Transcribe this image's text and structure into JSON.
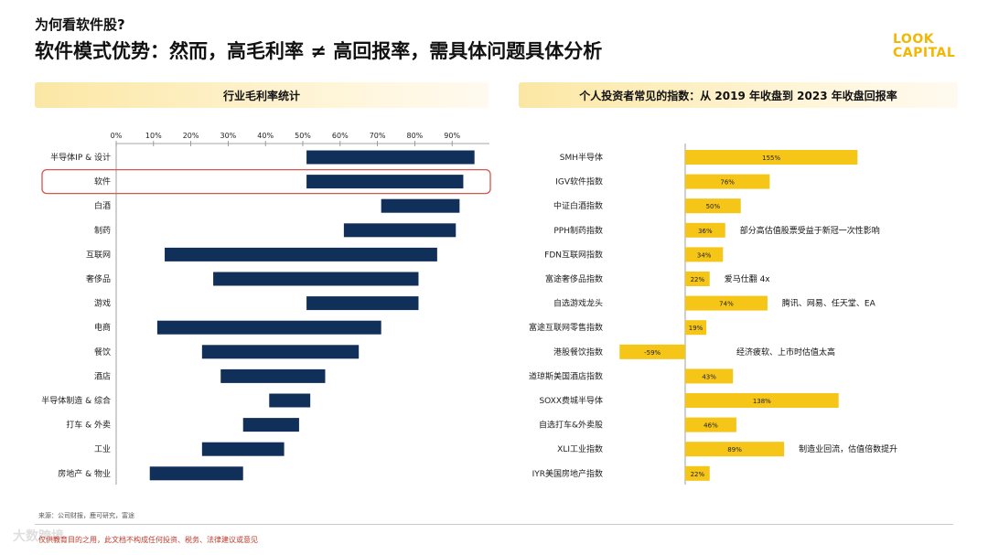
{
  "header": {
    "kicker": "为何看软件股?",
    "headline": "软件模式优势：然而，高毛利率 ≠ 高回报率，需具体问题具体分析",
    "logo_line1": "LOOK",
    "logo_line2": "CAPITAL"
  },
  "footer": {
    "source": "来源：公司财报，鹿可研究，富途",
    "disclaimer": "仅供教育目的之用，此文档不构成任何投资、税务、法律建议或意见",
    "watermark": "大数跨境"
  },
  "colors": {
    "navy": "#10305a",
    "gold": "#f5c518",
    "highlight": "#d9534f"
  },
  "chart_data": [
    {
      "type": "bar",
      "title": "行业毛利率统计",
      "orientation": "horizontal-range",
      "xlim": [
        0,
        100
      ],
      "ticks": [
        "0%",
        "10%",
        "20%",
        "30%",
        "40%",
        "50%",
        "60%",
        "70%",
        "80%",
        "90%"
      ],
      "tick_values": [
        0,
        10,
        20,
        30,
        40,
        50,
        60,
        70,
        80,
        90
      ],
      "highlight_category": "软件",
      "categories": [
        "半导体IP & 设计",
        "软件",
        "白酒",
        "制药",
        "互联网",
        "奢侈品",
        "游戏",
        "电商",
        "餐饮",
        "酒店",
        "半导体制造 & 综合",
        "打车 & 外卖",
        "工业",
        "房地产 & 物业"
      ],
      "ranges": [
        [
          51,
          96
        ],
        [
          51,
          93
        ],
        [
          71,
          92
        ],
        [
          61,
          91
        ],
        [
          13,
          86
        ],
        [
          26,
          81
        ],
        [
          51,
          81
        ],
        [
          11,
          71
        ],
        [
          23,
          65
        ],
        [
          28,
          56
        ],
        [
          41,
          52
        ],
        [
          34,
          49
        ],
        [
          23,
          45
        ],
        [
          9,
          34
        ]
      ]
    },
    {
      "type": "bar",
      "title": "个人投资者常见的指数：从 2019 年收盘到 2023 年收盘回报率",
      "orientation": "horizontal",
      "unit": "%",
      "categories": [
        "SMH半导体",
        "IGV软件指数",
        "中证白酒指数",
        "PPH制药指数",
        "FDN互联网指数",
        "富途奢侈品指数",
        "自选游戏龙头",
        "富途互联网零售指数",
        "港股餐饮指数",
        "道琼斯美国酒店指数",
        "SOXX费城半导体",
        "自选打车&外卖股",
        "XLI工业指数",
        "IYR美国房地产指数"
      ],
      "values": [
        155,
        76,
        50,
        36,
        34,
        22,
        74,
        19,
        -59,
        43,
        138,
        46,
        89,
        22
      ],
      "labels": [
        "155%",
        "76%",
        "50%",
        "36%",
        "34%",
        "22%",
        "74%",
        "19%",
        "-59%",
        "43%",
        "138%",
        "46%",
        "89%",
        "22%"
      ],
      "annotations": [
        "",
        "",
        "",
        "部分高估值股票受益于新冠一次性影响",
        "",
        "爱马仕翻 4x",
        "腾讯、网易、任天堂、EA",
        "",
        "经济疲软、上市时估值太高",
        "",
        "",
        "",
        "制造业回流，估值倍数提升",
        ""
      ]
    }
  ]
}
